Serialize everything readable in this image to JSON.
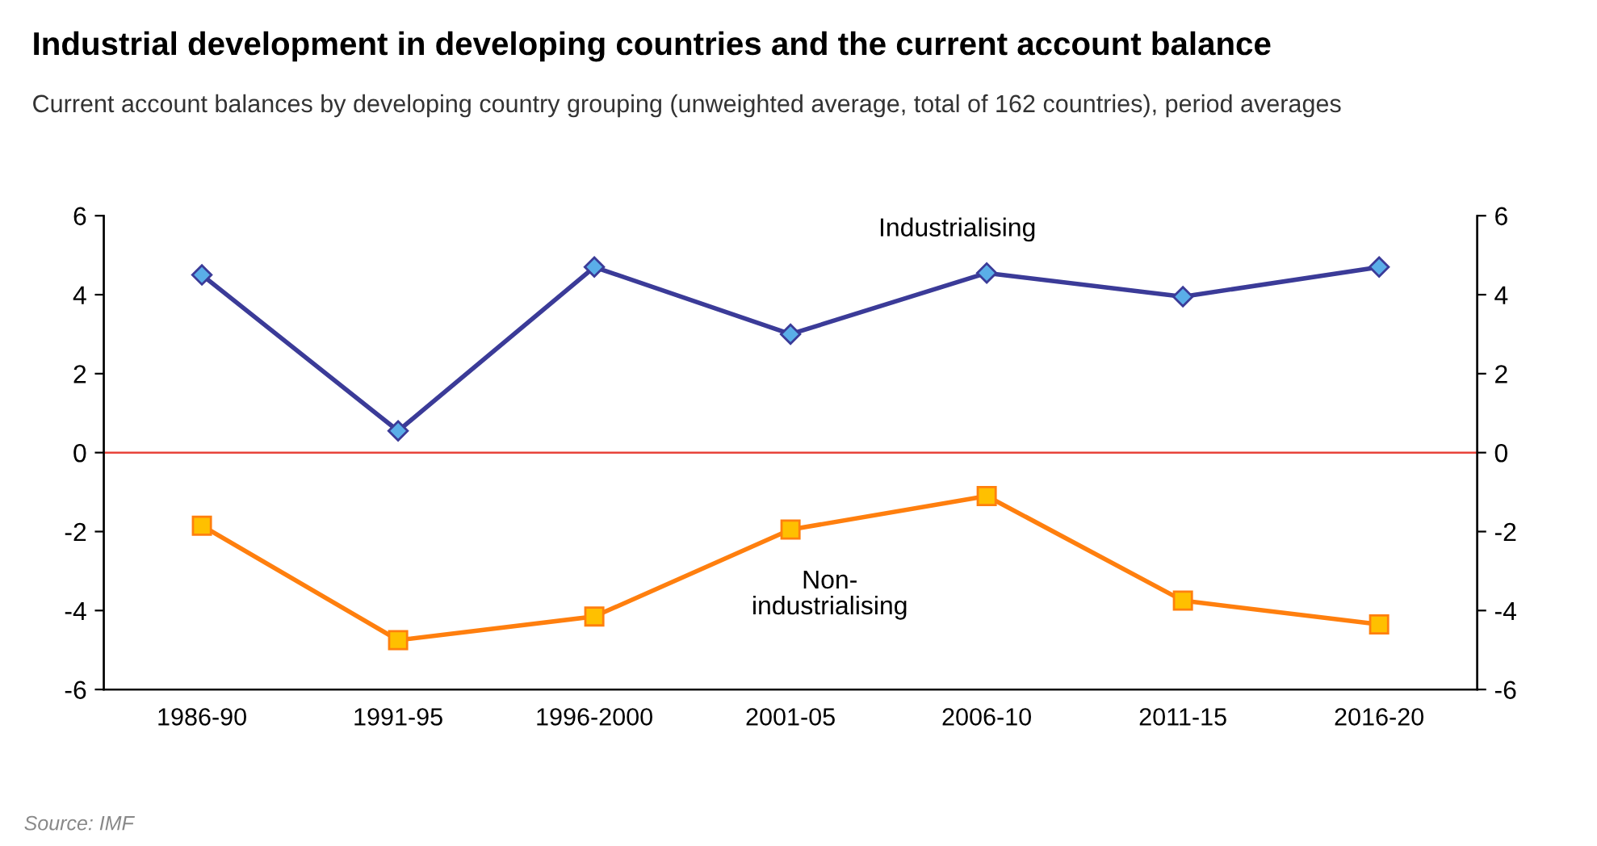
{
  "chart_data": {
    "type": "line",
    "title": "Industrial development in developing countries and the current account balance",
    "subtitle": "Current account balances by developing country grouping (unweighted average, total of 162 countries), period averages",
    "categories": [
      "1986-90",
      "1991-95",
      "1996-2000",
      "2001-05",
      "2006-10",
      "2011-15",
      "2016-20"
    ],
    "series": [
      {
        "name": "Industrialising",
        "color": "#3b3b98",
        "marker": "diamond",
        "values": [
          4.5,
          0.55,
          4.7,
          3.0,
          4.55,
          3.95,
          4.7
        ]
      },
      {
        "name": "Non-\nindustrialising",
        "color": "#ff7f0e",
        "marker": "square",
        "values": [
          -1.85,
          -4.75,
          -4.15,
          -1.95,
          -1.1,
          -3.75,
          -4.35
        ]
      }
    ],
    "ylim": [
      -6,
      6
    ],
    "yticks": [
      -6,
      -4,
      -2,
      0,
      2,
      4,
      6
    ],
    "y2lim": [
      -6,
      6
    ],
    "y2ticks": [
      -6,
      -4,
      -2,
      0,
      2,
      4,
      6
    ],
    "ref_lines": [
      {
        "axis": "y",
        "value": 0,
        "color": "#e8443a"
      }
    ],
    "grid": false,
    "legend": false,
    "annotations": [
      "Source: IMF"
    ]
  }
}
